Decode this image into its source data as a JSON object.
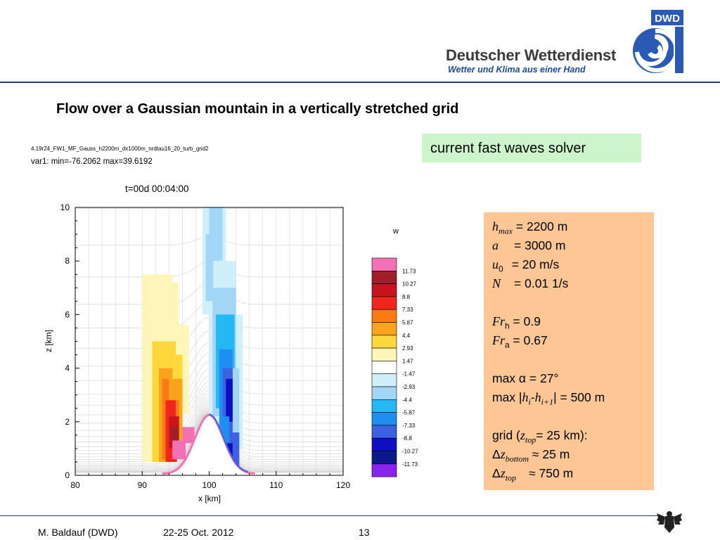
{
  "header": {
    "org_name": "Deutscher Wetterdienst",
    "tagline": "Wetter und Klima aus einer Hand",
    "logo_text": "DWD",
    "logo_icon": "dwd-spiral-logo"
  },
  "slide": {
    "title": "Flow over a Gaussian mountain in a vertically stretched grid",
    "solver_label": "current fast waves solver"
  },
  "plot_meta": {
    "run_id": "4.19r24_FW1_MF_Gauss_h2200m_dx1000m_nrdtau16_20_turb_grid2",
    "var_summary": "var1:   min=-76.2062  max=39.6192",
    "time_label": "t=00d 00:04:00"
  },
  "params": {
    "hmax_sym": "h",
    "hmax_sub": "max",
    "hmax_val": " = 2200 m",
    "a_sym": "a",
    "a_val": "= 3000 m",
    "u0_sym": "u",
    "u0_sub": "0",
    "u0_val": "= 20 m/s",
    "n_sym": "N",
    "n_val": "= 0.01 1/s",
    "frh_sym": "Fr",
    "frh_sub": "h",
    "frh_val": " = 0.9",
    "fra_sym": "Fr",
    "fra_sub": "a",
    "fra_val": " = 0.67",
    "max_alpha": "max α = 27°",
    "max_dh_pre": "max |",
    "max_dh_hi": "h",
    "max_dh_i": "i",
    "max_dh_dash": "-",
    "max_dh_hi1": "h",
    "max_dh_i1": "i+1",
    "max_dh_post": "| = 500 m",
    "grid_pre": "grid (",
    "grid_z": "z",
    "grid_top": "top",
    "grid_post": "= 25 km):",
    "dz_bottom_delta": "Δ",
    "dz_bottom_z": "z",
    "dz_bottom_sub": "bottom",
    "dz_bottom_val": " ≈  25 m",
    "dz_top_delta": "Δ",
    "dz_top_z": "z",
    "dz_top_sub": "top",
    "dz_top_val": "≈ 750 m"
  },
  "footer": {
    "author": "M. Baldauf (DWD)",
    "date": "22-25 Oct. 2012",
    "page": "13",
    "emblem_icon": "federal-eagle-icon"
  },
  "chart_data": {
    "type": "heatmap",
    "xlabel": "x [km]",
    "ylabel": "z [km]",
    "xlim": [
      80,
      120
    ],
    "ylim": [
      0,
      10
    ],
    "xticks": [
      80,
      90,
      100,
      110,
      120
    ],
    "yticks": [
      0,
      2,
      4,
      6,
      8,
      10
    ],
    "legend_title": "w",
    "legend_placement": "right",
    "grid": true,
    "mountain": {
      "height_km": 2.2,
      "center_km": 100,
      "half_width_km": 3
    },
    "colorbar": {
      "labels": [
        "11.73",
        "10.27",
        "8.8",
        "7.33",
        "5.87",
        "4.4",
        "2.93",
        "1.47",
        "-1.47",
        "-2.93",
        "-4.4",
        "-5.87",
        "-7.33",
        "-8.8",
        "-10.27",
        "-11.73"
      ],
      "colors": [
        "#f270b4",
        "#9c1f2a",
        "#c8141e",
        "#f0251e",
        "#fa7a14",
        "#fba31c",
        "#fcd83c",
        "#fef6b8",
        "#ffffff",
        "#cff0fa",
        "#a2d6f6",
        "#26b8f4",
        "#1e8ef0",
        "#3c62e2",
        "#0e0ec2",
        "#081a8c",
        "#8a22f0"
      ]
    }
  }
}
